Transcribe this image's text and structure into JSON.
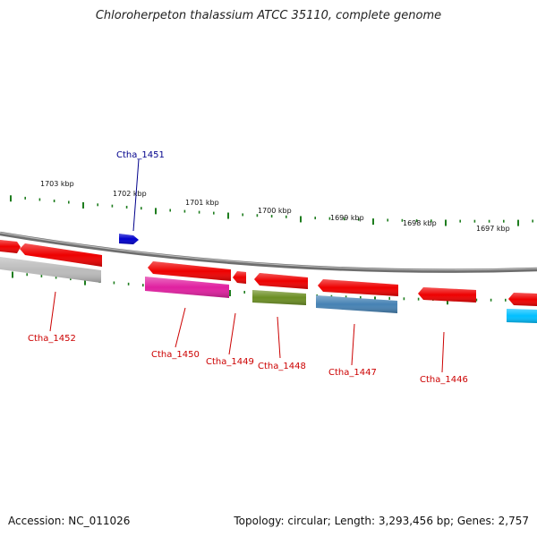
{
  "title": "Chloroherpeton thalassium ATCC 35110, complete genome",
  "footer": {
    "accession": "Accession: NC_011026",
    "topology": "Topology: circular; Length: 3,293,456 bp; Genes: 2,757"
  },
  "colors": {
    "backbone": "#8a8a8a",
    "tick": "#1e7d1e",
    "gene_label": "#cc0000",
    "gene_label_highlight": "#00008b"
  },
  "kbp_ticks": [
    "1703 kbp",
    "1702 kbp",
    "1701 kbp",
    "1700 kbp",
    "1699 kbp",
    "1698 kbp",
    "1697 kbp"
  ],
  "gene_labels": [
    {
      "id": "Ctha_1451",
      "color": "#00008b"
    },
    {
      "id": "Ctha_1452",
      "color": "#cc0000"
    },
    {
      "id": "Ctha_1450",
      "color": "#cc0000"
    },
    {
      "id": "Ctha_1449",
      "color": "#cc0000"
    },
    {
      "id": "Ctha_1448",
      "color": "#cc0000"
    },
    {
      "id": "Ctha_1447",
      "color": "#cc0000"
    },
    {
      "id": "Ctha_1446",
      "color": "#cc0000"
    }
  ],
  "features": [
    {
      "name": "gene-top-1",
      "color": "#ee0000",
      "strand": "top"
    },
    {
      "name": "gene-top-2",
      "color": "#ee0000",
      "strand": "top"
    },
    {
      "name": "gene-top-ctha-1451",
      "color": "#0000cc",
      "strand": "top"
    },
    {
      "name": "gene-mid-1",
      "color": "#ee0000",
      "strand": "middle"
    },
    {
      "name": "gene-mid-2",
      "color": "#ee0000",
      "strand": "middle"
    },
    {
      "name": "gene-mid-3",
      "color": "#ee0000",
      "strand": "middle"
    },
    {
      "name": "gene-mid-4",
      "color": "#ee0000",
      "strand": "middle"
    },
    {
      "name": "gene-mid-5",
      "color": "#ee0000",
      "strand": "middle"
    },
    {
      "name": "gene-mid-6",
      "color": "#ee0000",
      "strand": "middle"
    },
    {
      "name": "gene-bottom-grey",
      "color": "#bbbbbb",
      "strand": "bottom"
    },
    {
      "name": "gene-bottom-magenta",
      "color": "#e020a0",
      "strand": "bottom"
    },
    {
      "name": "gene-bottom-olive",
      "color": "#6b8e23",
      "strand": "bottom"
    },
    {
      "name": "gene-bottom-steelblue",
      "color": "#4682b4",
      "strand": "bottom"
    },
    {
      "name": "gene-bottom-cyan",
      "color": "#00bfff",
      "strand": "bottom"
    }
  ]
}
